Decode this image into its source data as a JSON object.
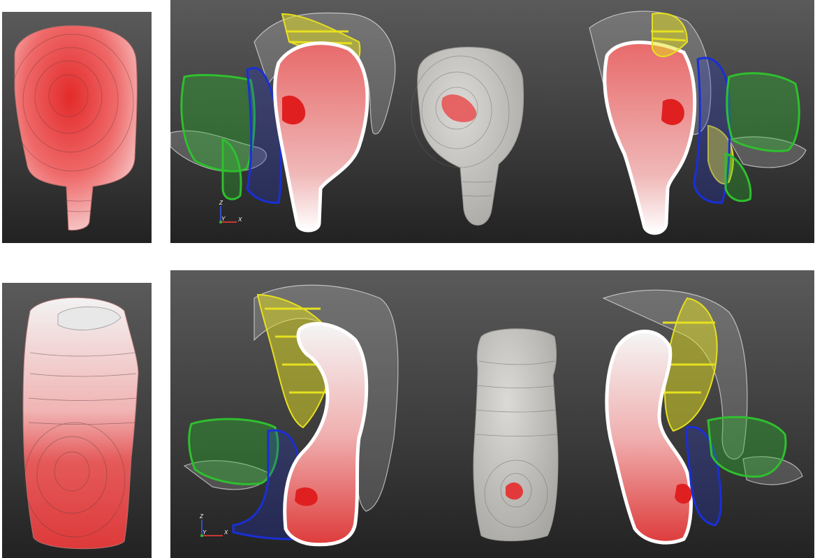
{
  "axes_top": {
    "z": "Z",
    "y": "Y",
    "x": "X"
  },
  "axes_bottom": {
    "z": "Z",
    "y": "Y",
    "x": "X"
  },
  "colors": {
    "background_top": "#5a5a5a",
    "background_bottom": "#222222",
    "heatmap_red": "#e23a3a",
    "heatmap_white": "#f4f4f4",
    "structure_green": "#2fbf2f",
    "structure_blue": "#1a2fd6",
    "structure_yellow": "#e6e020",
    "cut_outline": "#ffffff",
    "organ_gray": "#cfcdc8",
    "lesion_red": "#e02020"
  },
  "icons": [
    "axis-triad-icon"
  ]
}
